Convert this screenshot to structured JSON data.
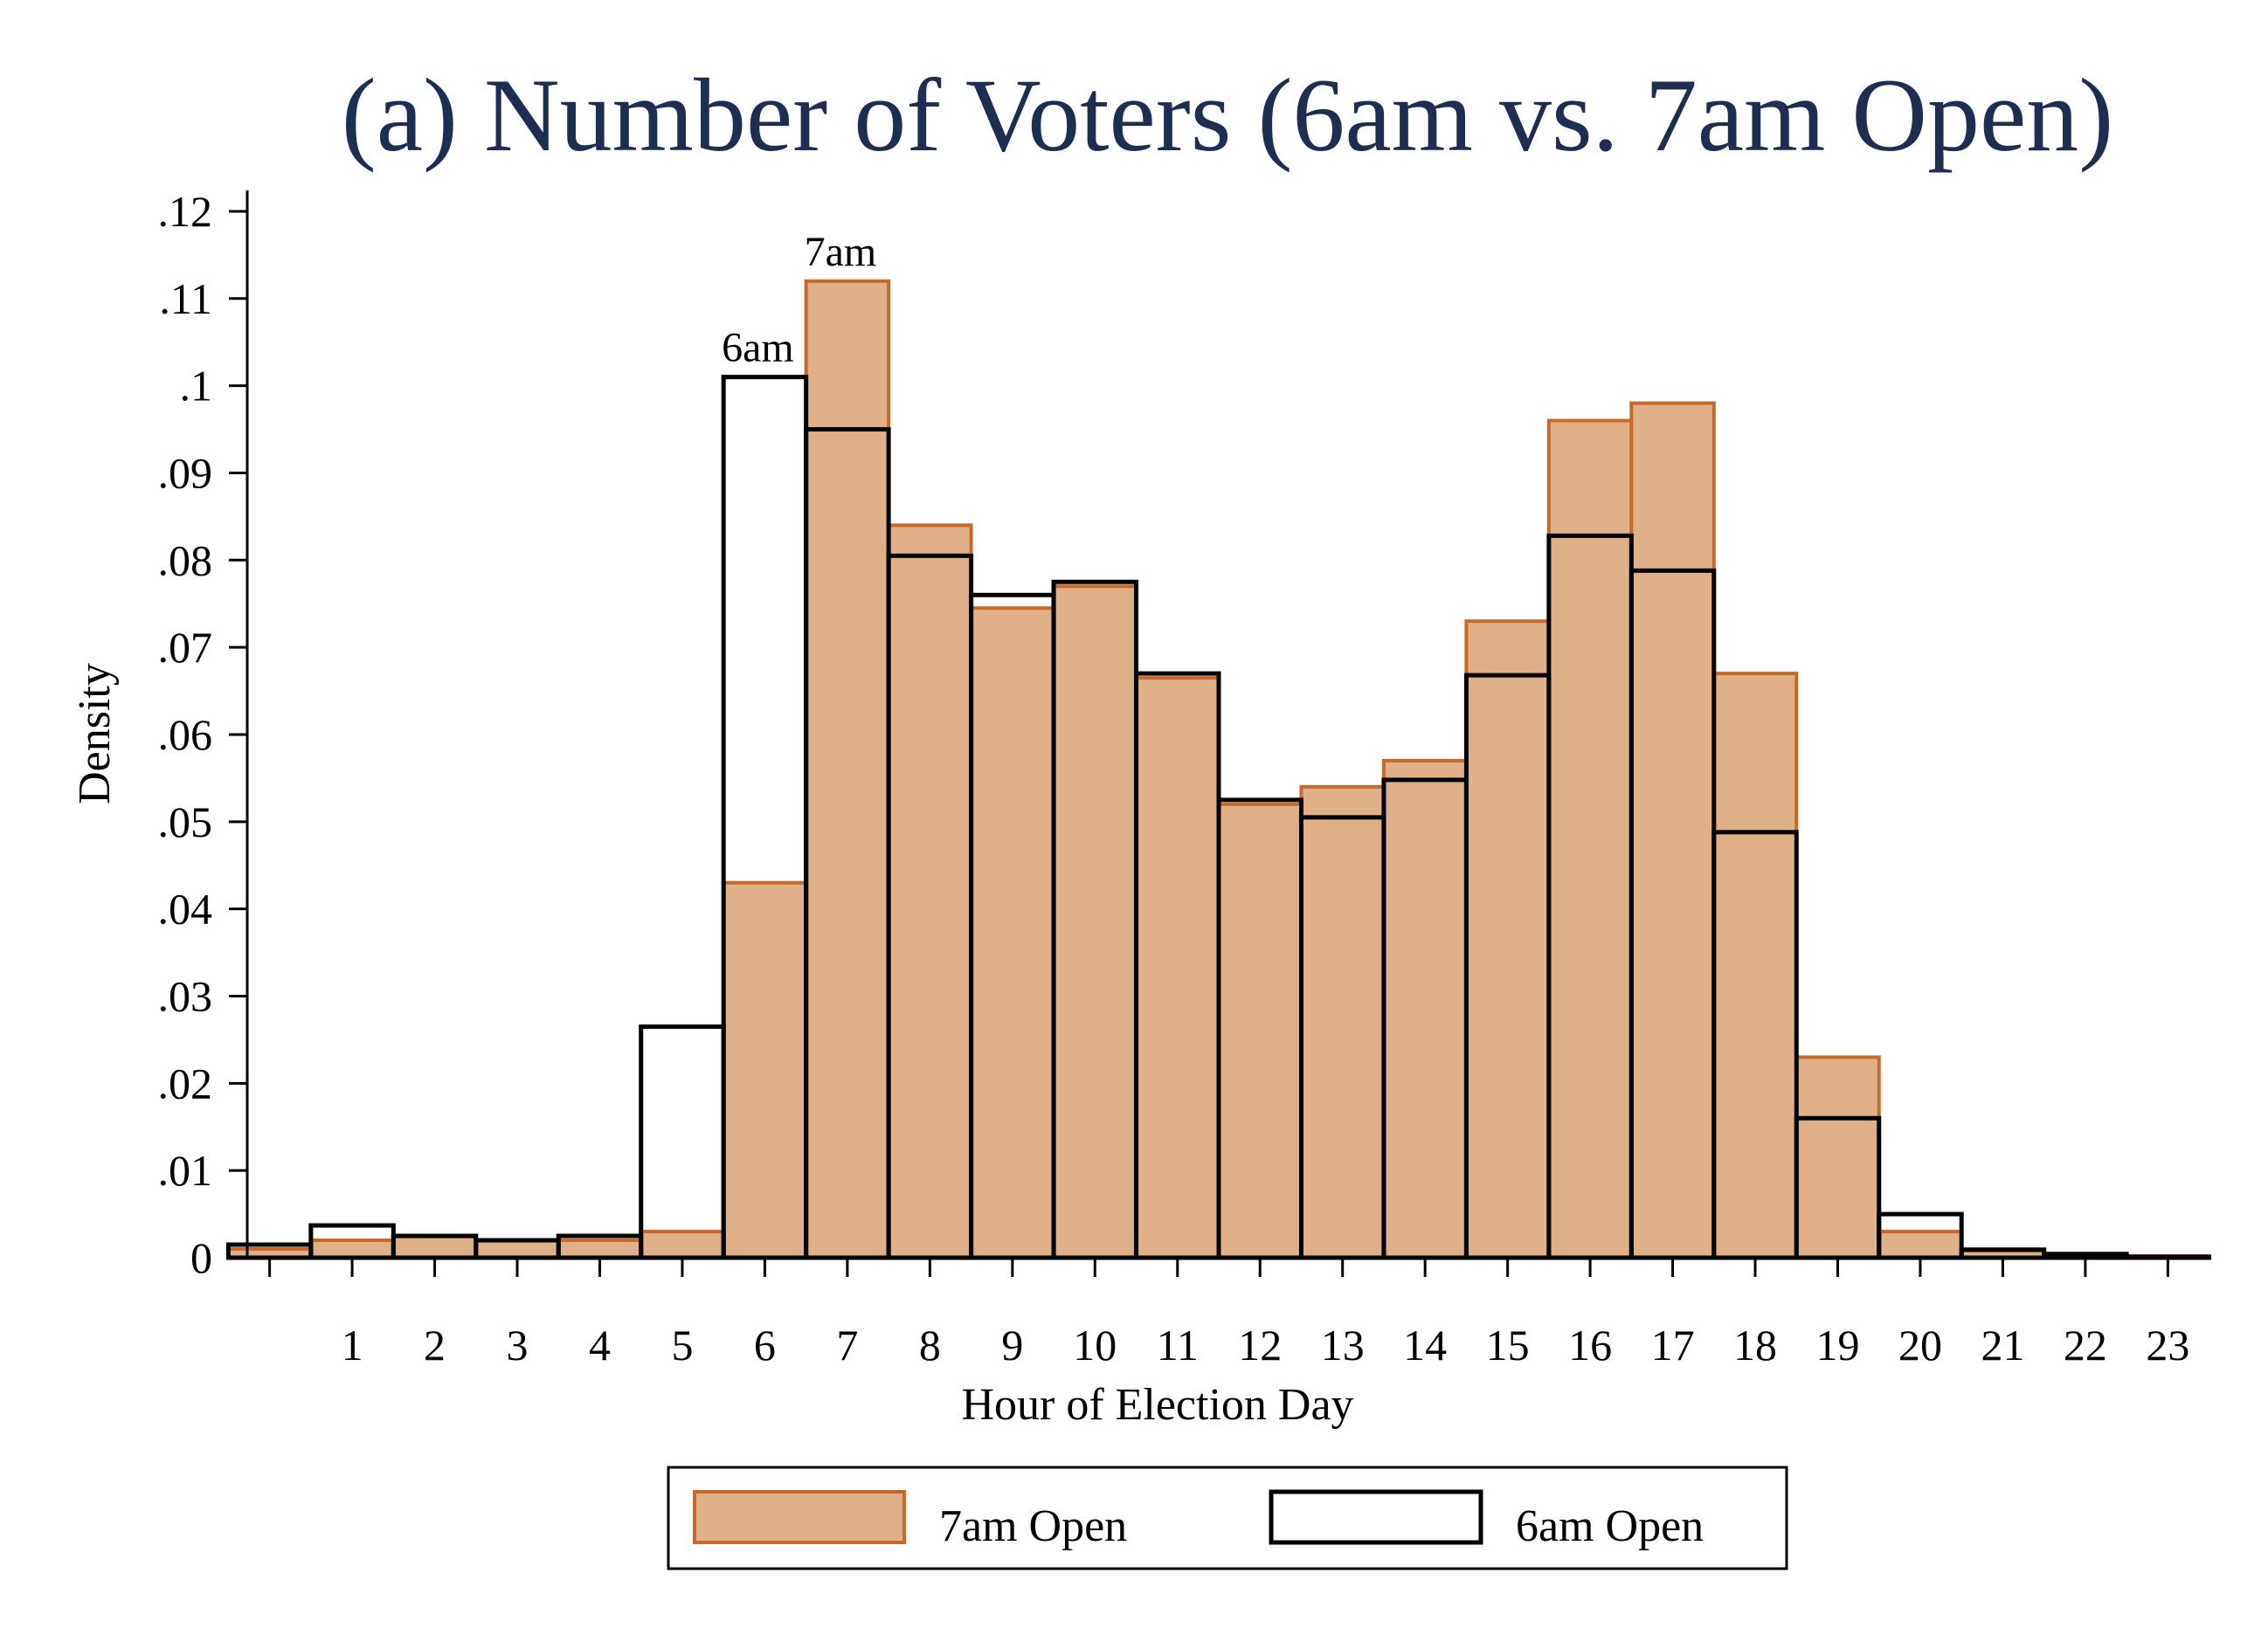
{
  "chart_data": {
    "type": "bar",
    "title": "(a) Number of Voters (6am vs. 7am Open)",
    "xlabel": "Hour of Election Day",
    "ylabel": "Density",
    "x": [
      0,
      1,
      2,
      3,
      4,
      5,
      6,
      7,
      8,
      9,
      10,
      11,
      12,
      13,
      14,
      15,
      16,
      17,
      18,
      19,
      20,
      21,
      22,
      23
    ],
    "xticks": [
      "1",
      "2",
      "3",
      "4",
      "5",
      "6",
      "7",
      "8",
      "9",
      "10",
      "11",
      "12",
      "13",
      "14",
      "15",
      "16",
      "17",
      "18",
      "19",
      "20",
      "21",
      "22",
      "23"
    ],
    "yticks": [
      {
        "v": 0,
        "label": "0"
      },
      {
        "v": 0.01,
        "label": ".01"
      },
      {
        "v": 0.02,
        "label": ".02"
      },
      {
        "v": 0.03,
        "label": ".03"
      },
      {
        "v": 0.04,
        "label": ".04"
      },
      {
        "v": 0.05,
        "label": ".05"
      },
      {
        "v": 0.06,
        "label": ".06"
      },
      {
        "v": 0.07,
        "label": ".07"
      },
      {
        "v": 0.08,
        "label": ".08"
      },
      {
        "v": 0.09,
        "label": ".09"
      },
      {
        "v": 0.1,
        "label": ".1"
      },
      {
        "v": 0.11,
        "label": ".11"
      },
      {
        "v": 0.12,
        "label": ".12"
      }
    ],
    "ylim": [
      0,
      0.122
    ],
    "xlim": [
      -0.25,
      23.25
    ],
    "grid": false,
    "legend_position": "bottom",
    "series": [
      {
        "name": "7am Open",
        "fill": "#e0b189",
        "stroke": "#c8692a",
        "values": [
          0.001,
          0.002,
          0.0025,
          0.002,
          0.002,
          0.003,
          0.043,
          0.112,
          0.084,
          0.0745,
          0.077,
          0.0665,
          0.052,
          0.054,
          0.057,
          0.073,
          0.096,
          0.098,
          0.067,
          0.023,
          0.003,
          0.001,
          0.0005,
          0.0002
        ]
      },
      {
        "name": "6am Open",
        "fill": "none",
        "stroke": "#000000",
        "values": [
          0.0015,
          0.0037,
          0.0025,
          0.002,
          0.0025,
          0.0265,
          0.101,
          0.095,
          0.0805,
          0.076,
          0.0775,
          0.067,
          0.0525,
          0.0505,
          0.0548,
          0.0668,
          0.0828,
          0.0788,
          0.0488,
          0.016,
          0.005,
          0.0009,
          0.0004,
          0.0001
        ]
      }
    ],
    "annotations": [
      {
        "text": "6am",
        "x": 6,
        "y": 0.101
      },
      {
        "text": "7am",
        "x": 7,
        "y": 0.112
      }
    ],
    "colors": {
      "title": "#1e2e52",
      "text": "#000000"
    }
  }
}
